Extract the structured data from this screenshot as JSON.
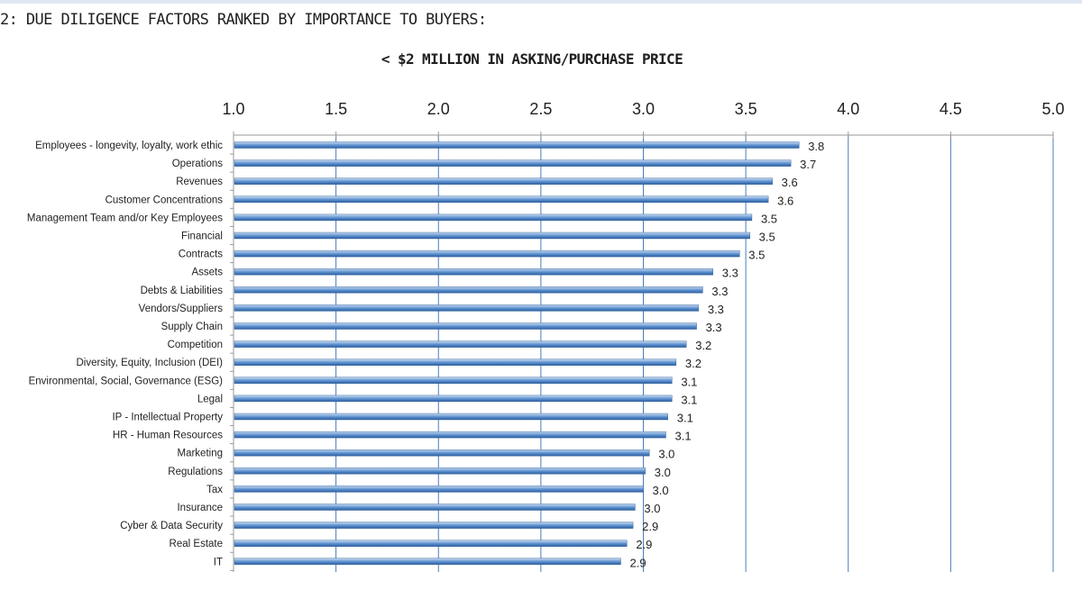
{
  "figure": {
    "title": "2: DUE DILIGENCE FACTORS RANKED BY IMPORTANCE TO BUYERS:",
    "subtitle": "< $2 MILLION IN ASKING/PURCHASE PRICE"
  },
  "colors": {
    "bar_top": "#c7daef",
    "bar_mid": "#5b8fcf",
    "bar_bottom": "#2d5f9e",
    "grid": "#4a7dbf",
    "axis": "#9a9a9a",
    "text": "#222222"
  },
  "chart_data": {
    "type": "bar",
    "orientation": "horizontal",
    "title": "< $2 MILLION IN ASKING/PURCHASE PRICE",
    "xlabel": "",
    "ylabel": "",
    "xlim": [
      1.0,
      5.0
    ],
    "x_ticks": [
      "1.0",
      "1.5",
      "2.0",
      "2.5",
      "3.0",
      "3.5",
      "4.0",
      "4.5",
      "5.0"
    ],
    "x_axis_position": "top",
    "grid": true,
    "legend": "none",
    "categories": [
      "Employees - longevity, loyalty, work ethic",
      "Operations",
      "Revenues",
      "Customer Concentrations",
      "Management Team and/or Key Employees",
      "Financial",
      "Contracts",
      "Assets",
      "Debts & Liabilities",
      "Vendors/Suppliers",
      "Supply Chain",
      "Competition",
      "Diversity, Equity, Inclusion (DEI)",
      "Environmental, Social, Governance (ESG)",
      "Legal",
      "IP - Intellectual Property",
      "HR - Human Resources",
      "Marketing",
      "Regulations",
      "Tax",
      "Insurance",
      "Cyber & Data Security",
      "Real Estate",
      "IT"
    ],
    "values": [
      3.76,
      3.72,
      3.63,
      3.61,
      3.53,
      3.52,
      3.47,
      3.34,
      3.29,
      3.27,
      3.26,
      3.21,
      3.16,
      3.14,
      3.14,
      3.12,
      3.11,
      3.03,
      3.01,
      3.0,
      2.96,
      2.95,
      2.92,
      2.89
    ],
    "value_labels": [
      "3.8",
      "3.7",
      "3.6",
      "3.6",
      "3.5",
      "3.5",
      "3.5",
      "3.3",
      "3.3",
      "3.3",
      "3.3",
      "3.2",
      "3.2",
      "3.1",
      "3.1",
      "3.1",
      "3.1",
      "3.0",
      "3.0",
      "3.0",
      "3.0",
      "2.9",
      "2.9",
      "2.9"
    ]
  }
}
